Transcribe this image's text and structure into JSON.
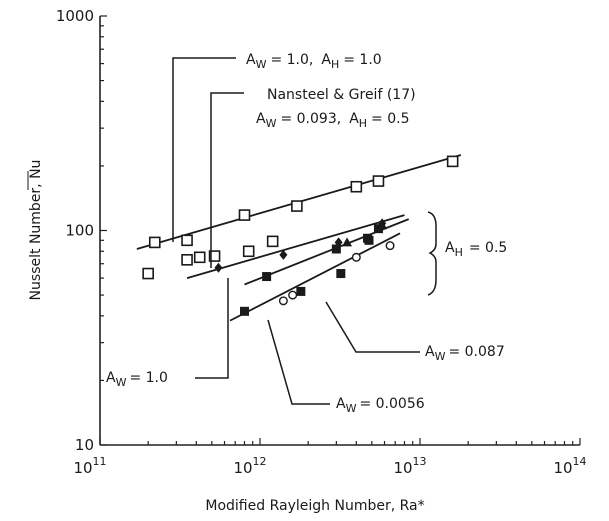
{
  "chart_data": {
    "type": "scatter",
    "xscale": "log",
    "yscale": "log",
    "xlim": [
      100000000000.0,
      100000000000000.0
    ],
    "ylim": [
      10,
      1000
    ],
    "xlabel": "Modified Rayleigh Number, Ra*",
    "ylabel": "Nusselt Number, Nu",
    "x_ticks": [
      {
        "value": 100000000000.0,
        "base": "10",
        "exp": "11"
      },
      {
        "value": 1000000000000.0,
        "base": "10",
        "exp": "12"
      },
      {
        "value": 10000000000000.0,
        "base": "10",
        "exp": "13"
      },
      {
        "value": 100000000000000.0,
        "base": "10",
        "exp": "14"
      }
    ],
    "y_ticks": [
      {
        "value": 10,
        "label": "10"
      },
      {
        "value": 100,
        "label": "100"
      },
      {
        "value": 1000,
        "label": "1000"
      }
    ],
    "series": [
      {
        "marker": "open-square",
        "points": [
          {
            "x": 220000000000.0,
            "y": 88
          },
          {
            "x": 350000000000.0,
            "y": 90
          },
          {
            "x": 800000000000.0,
            "y": 118
          },
          {
            "x": 1700000000000.0,
            "y": 130
          },
          {
            "x": 4000000000000.0,
            "y": 160
          },
          {
            "x": 5500000000000.0,
            "y": 170
          },
          {
            "x": 16000000000000.0,
            "y": 210
          }
        ],
        "fit": [
          {
            "x": 170000000000.0,
            "y": 82
          },
          {
            "x": 18000000000000.0,
            "y": 225
          }
        ]
      },
      {
        "marker": "open-square",
        "points": [
          {
            "x": 200000000000.0,
            "y": 63
          },
          {
            "x": 350000000000.0,
            "y": 73
          },
          {
            "x": 420000000000.0,
            "y": 75
          },
          {
            "x": 520000000000.0,
            "y": 76
          },
          {
            "x": 850000000000.0,
            "y": 80
          },
          {
            "x": 1200000000000.0,
            "y": 89
          }
        ]
      },
      {
        "marker": "filled-diamond",
        "points": [
          {
            "x": 550000000000.0,
            "y": 67
          },
          {
            "x": 1400000000000.0,
            "y": 77
          },
          {
            "x": 3100000000000.0,
            "y": 88
          },
          {
            "x": 5800000000000.0,
            "y": 108
          }
        ],
        "fit": [
          {
            "x": 350000000000.0,
            "y": 60
          },
          {
            "x": 8000000000000.0,
            "y": 118
          }
        ]
      },
      {
        "marker": "filled-square",
        "points": [
          {
            "x": 1100000000000.0,
            "y": 61
          },
          {
            "x": 3000000000000.0,
            "y": 82
          },
          {
            "x": 4700000000000.0,
            "y": 92
          },
          {
            "x": 5500000000000.0,
            "y": 102
          }
        ],
        "fit": [
          {
            "x": 800000000000.0,
            "y": 56
          },
          {
            "x": 8500000000000.0,
            "y": 113
          }
        ]
      },
      {
        "marker": "filled-triangle",
        "points": [
          {
            "x": 3500000000000.0,
            "y": 88
          },
          {
            "x": 5800000000000.0,
            "y": 106
          }
        ]
      },
      {
        "marker": "open-circle",
        "points": [
          {
            "x": 1400000000000.0,
            "y": 47
          },
          {
            "x": 1600000000000.0,
            "y": 50
          },
          {
            "x": 4000000000000.0,
            "y": 75
          },
          {
            "x": 6500000000000.0,
            "y": 85
          }
        ],
        "fit": [
          {
            "x": 650000000000.0,
            "y": 38
          },
          {
            "x": 7500000000000.0,
            "y": 97
          }
        ]
      },
      {
        "marker": "filled-square",
        "points": [
          {
            "x": 800000000000.0,
            "y": 42
          },
          {
            "x": 1800000000000.0,
            "y": 52
          },
          {
            "x": 3200000000000.0,
            "y": 63
          },
          {
            "x": 4800000000000.0,
            "y": 90
          }
        ]
      }
    ],
    "annotations": {
      "aw1_ah1": {
        "A1": "A",
        "s1": "W",
        "v1": "= 1.0,",
        "A2": "A",
        "s2": "H",
        "v2": "= 1.0"
      },
      "nansteel_title": "Nansteel & Greif (17)",
      "nansteel_params": {
        "A1": "A",
        "s1": "W",
        "v1": "= 0.093,",
        "A2": "A",
        "s2": "H",
        "v2": "= 0.5"
      },
      "ah_05": {
        "A": "A",
        "s": "H",
        "v": "=  0.5"
      },
      "aw_1": {
        "A": "A",
        "s": "W",
        "v": "= 1.0"
      },
      "aw_0087": {
        "A": "A",
        "s": "W",
        "v": "= 0.087"
      },
      "aw_00056": {
        "A": "A",
        "s": "W",
        "v": "=  0.0056"
      }
    }
  }
}
